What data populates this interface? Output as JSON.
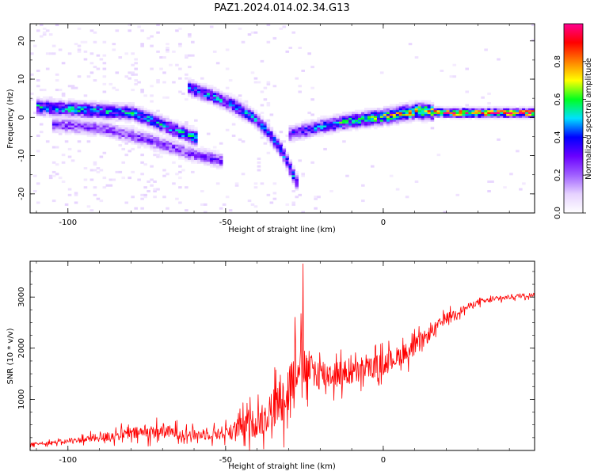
{
  "figure": {
    "title": "PAZ1.2024.014.02.34.G13"
  },
  "chart_data": [
    {
      "type": "heatmap",
      "title": "PAZ1.2024.014.02.34.G13",
      "xlabel": "Height of straight line (km)",
      "ylabel": "Frequency (Hz)",
      "xlim": [
        -112,
        48
      ],
      "ylim": [
        -25,
        24.5
      ],
      "xticks": [
        -100,
        -50,
        0
      ],
      "yticks": [
        -20,
        -10,
        0,
        10,
        20
      ],
      "colorbar": {
        "label": "Normalized spectral amplitude",
        "range": [
          0,
          1
        ],
        "ticks": [
          0.0,
          0.2,
          0.4,
          0.6,
          0.8
        ],
        "colormap": [
          "#ffffff",
          "#e6d2ff",
          "#a060ff",
          "#6a00ff",
          "#0000ff",
          "#00e0ff",
          "#00ff20",
          "#ffff00",
          "#ff8000",
          "#ff0000",
          "#ff0090"
        ]
      },
      "ridges": [
        {
          "description": "",
          "points": [
            [
              -110,
              2.5
            ],
            [
              -100,
              2.0
            ],
            [
              -90,
              1.5
            ],
            [
              -80,
              1.0
            ],
            [
              -72,
              -1.5
            ],
            [
              -65,
              -4.0
            ],
            [
              -60,
              -5.5
            ]
          ],
          "amplitude": 0.45
        },
        {
          "description": "",
          "points": [
            [
              -62,
              7.5
            ],
            [
              -55,
              5.5
            ],
            [
              -48,
              3.0
            ],
            [
              -42,
              0.0
            ],
            [
              -37,
              -4.0
            ],
            [
              -33,
              -8.5
            ],
            [
              -30,
              -13.5
            ],
            [
              -28,
              -17.0
            ]
          ],
          "amplitude": 0.4
        },
        {
          "description": "",
          "points": [
            [
              -30,
              -4.5
            ],
            [
              -20,
              -2.5
            ],
            [
              -10,
              -1.0
            ],
            [
              0,
              0.0
            ],
            [
              10,
              1.5
            ],
            [
              20,
              1.0
            ],
            [
              48,
              1.0
            ]
          ],
          "amplitude": 0.85
        },
        {
          "description": "",
          "points": [
            [
              -105,
              -2.0
            ],
            [
              -90,
              -3.0
            ],
            [
              -75,
              -6.0
            ],
            [
              -62,
              -9.5
            ],
            [
              -52,
              -11.5
            ]
          ],
          "amplitude": 0.25
        }
      ]
    },
    {
      "type": "line",
      "xlabel": "Height of straight line (km)",
      "ylabel": "SNR (10 * v/v)",
      "xlim": [
        -112,
        48
      ],
      "ylim": [
        0,
        3700
      ],
      "xticks": [
        -100,
        -50,
        0
      ],
      "yticks": [
        1000,
        2000,
        3000
      ],
      "color": "#ff0000",
      "series": [
        {
          "envelope_x": [
            -112,
            -100,
            -90,
            -80,
            -70,
            -60,
            -50,
            -40,
            -35,
            -30,
            -27,
            -25,
            -20,
            -10,
            0,
            10,
            20,
            30,
            40,
            48
          ],
          "envelope_y": [
            120,
            180,
            250,
            330,
            380,
            300,
            350,
            550,
            800,
            1200,
            1800,
            1600,
            1500,
            1500,
            1700,
            2000,
            2600,
            2900,
            3000,
            3050
          ],
          "spread": [
            60,
            90,
            180,
            260,
            300,
            220,
            300,
            650,
            900,
            1100,
            1200,
            900,
            700,
            500,
            450,
            400,
            200,
            120,
            100,
            90
          ],
          "peak": [
            -25.5,
            3650
          ]
        }
      ]
    }
  ]
}
